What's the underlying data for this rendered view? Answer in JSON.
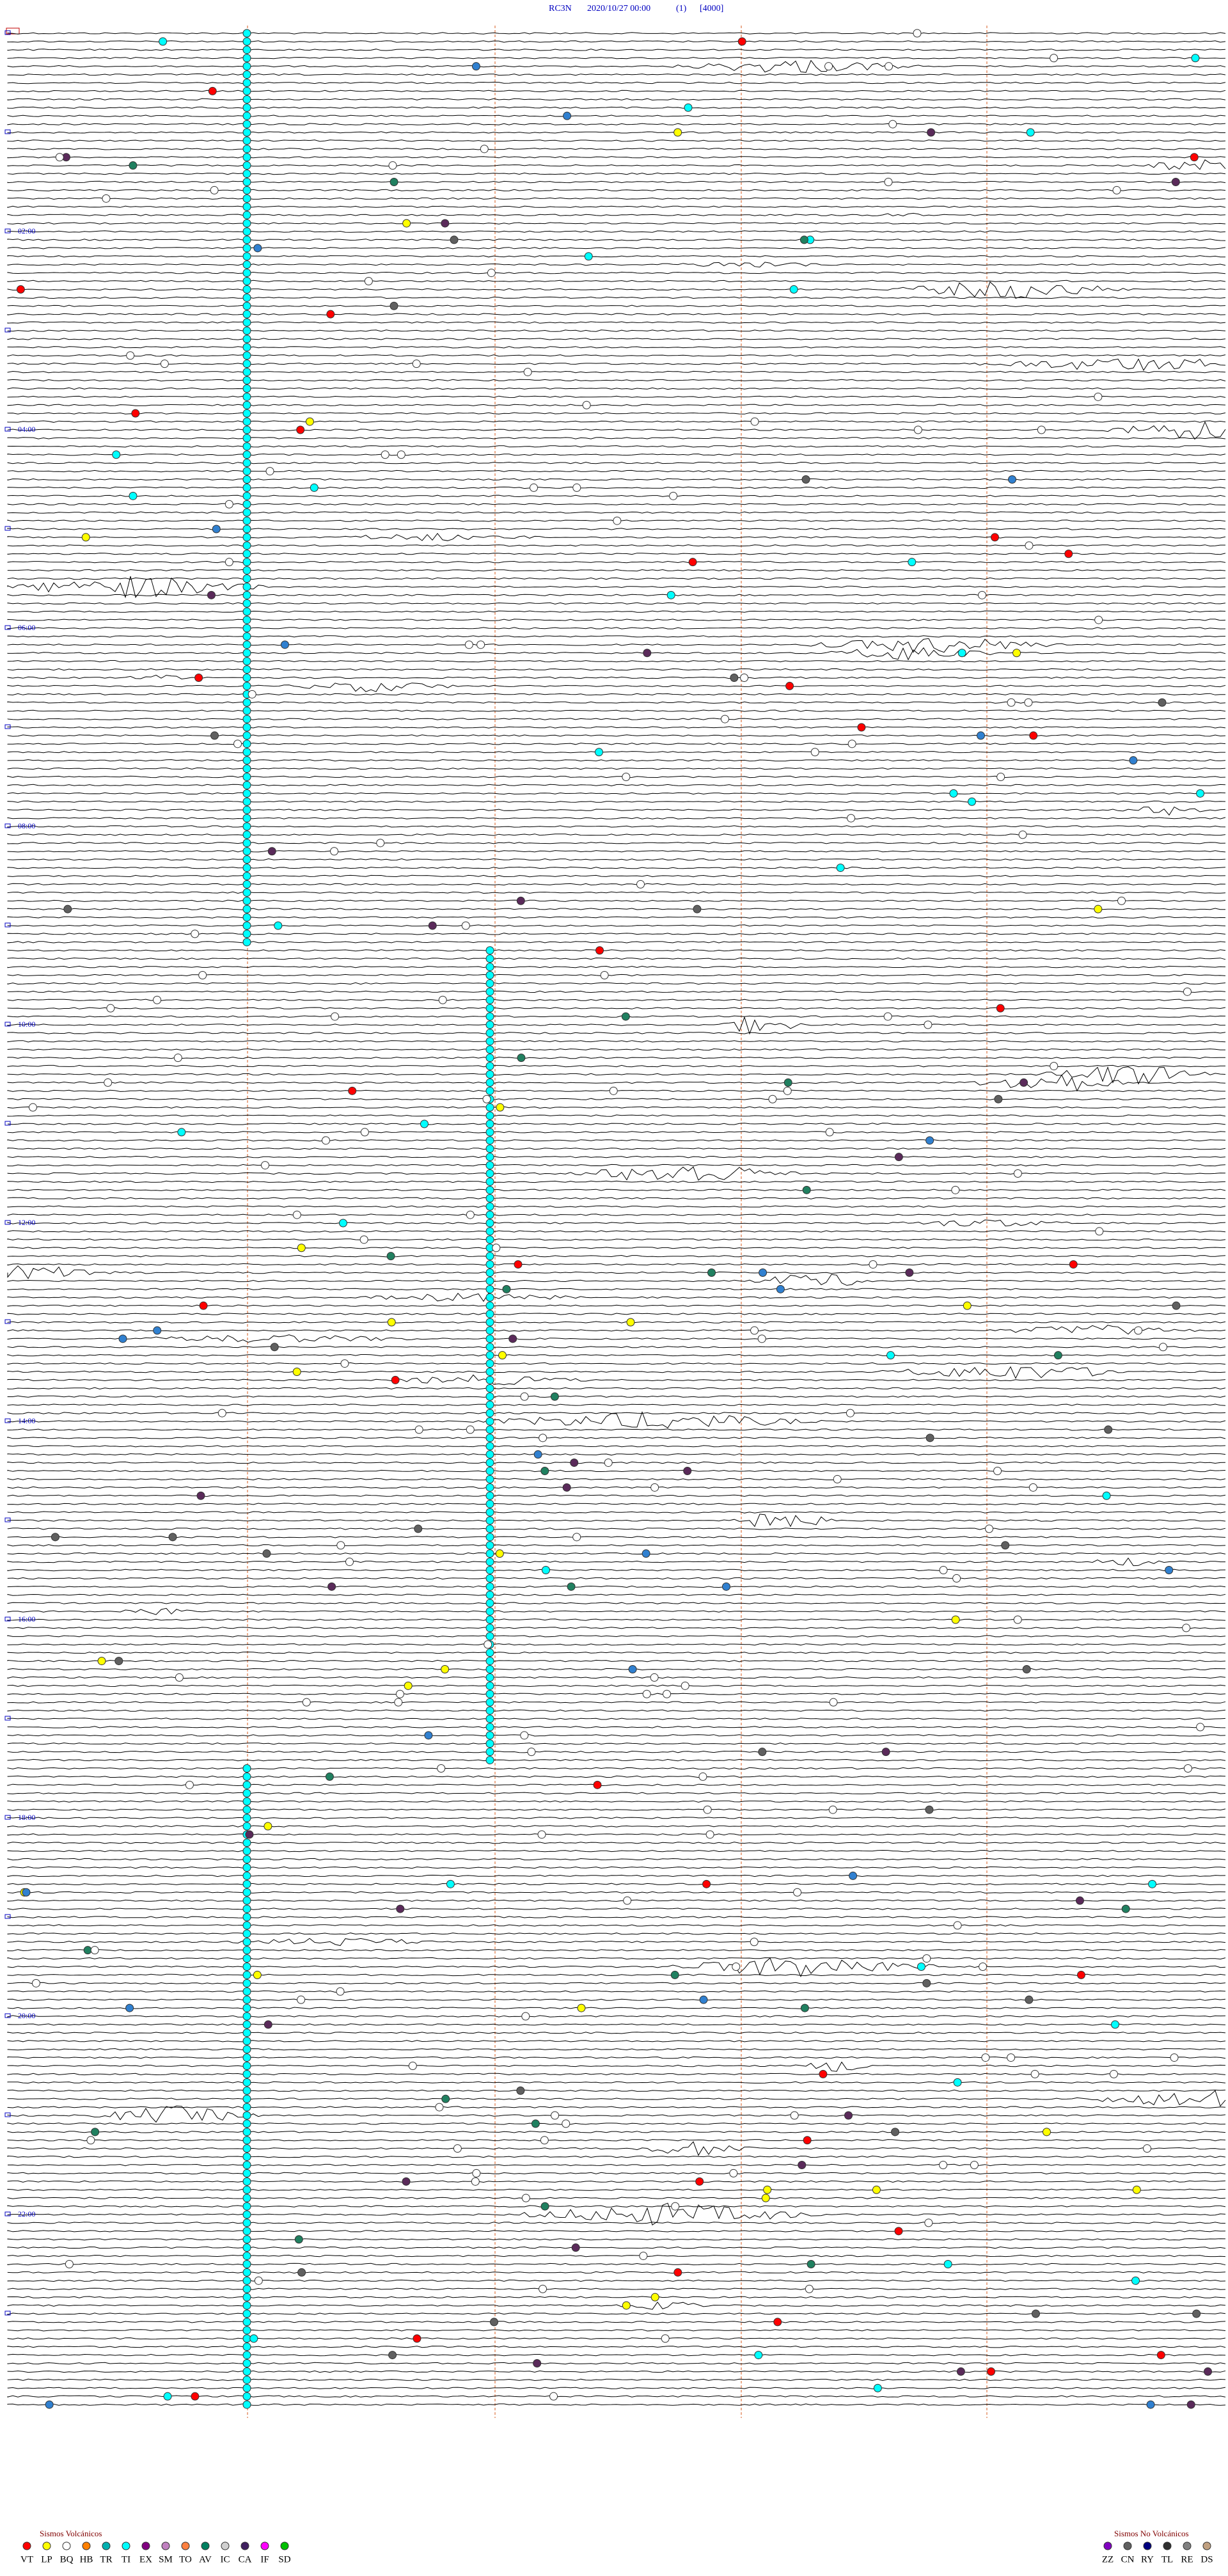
{
  "header": {
    "station": "RC3N",
    "datetime": "2020/10/27 00:00",
    "channel": "(1)",
    "scale": "[4000]"
  },
  "hour_labels": [
    "02:00",
    "04:00",
    "06:00",
    "08:00",
    "10:00",
    "12:00",
    "14:00",
    "16:00",
    "18:00",
    "20:00",
    "22:00"
  ],
  "legend_volcanic": {
    "title": "Sismos Volcánicos",
    "items": [
      {
        "code": "VT",
        "color": "#ff0000"
      },
      {
        "code": "LP",
        "color": "#ffff00"
      },
      {
        "code": "BQ",
        "color": "#ffffff"
      },
      {
        "code": "HB",
        "color": "#ff8000"
      },
      {
        "code": "TR",
        "color": "#00b0b0"
      },
      {
        "code": "TI",
        "color": "#00ffff"
      },
      {
        "code": "EX",
        "color": "#800080"
      },
      {
        "code": "SM",
        "color": "#c080c0"
      },
      {
        "code": "TO",
        "color": "#ff8040"
      },
      {
        "code": "AV",
        "color": "#008060"
      },
      {
        "code": "IC",
        "color": "#d0d0d0"
      },
      {
        "code": "CA",
        "color": "#402060"
      },
      {
        "code": "IF",
        "color": "#ff00ff"
      },
      {
        "code": "SD",
        "color": "#00c000"
      }
    ]
  },
  "legend_non_volcanic": {
    "title": "Sismos No Volcánicos",
    "items": [
      {
        "code": "ZZ",
        "color": "#8000c0"
      },
      {
        "code": "CN",
        "color": "#606060"
      },
      {
        "code": "RY",
        "color": "#000080"
      },
      {
        "code": "TL",
        "color": "#303030"
      },
      {
        "code": "RE",
        "color": "#808080"
      },
      {
        "code": "DS",
        "color": "#c0a080"
      }
    ]
  }
}
